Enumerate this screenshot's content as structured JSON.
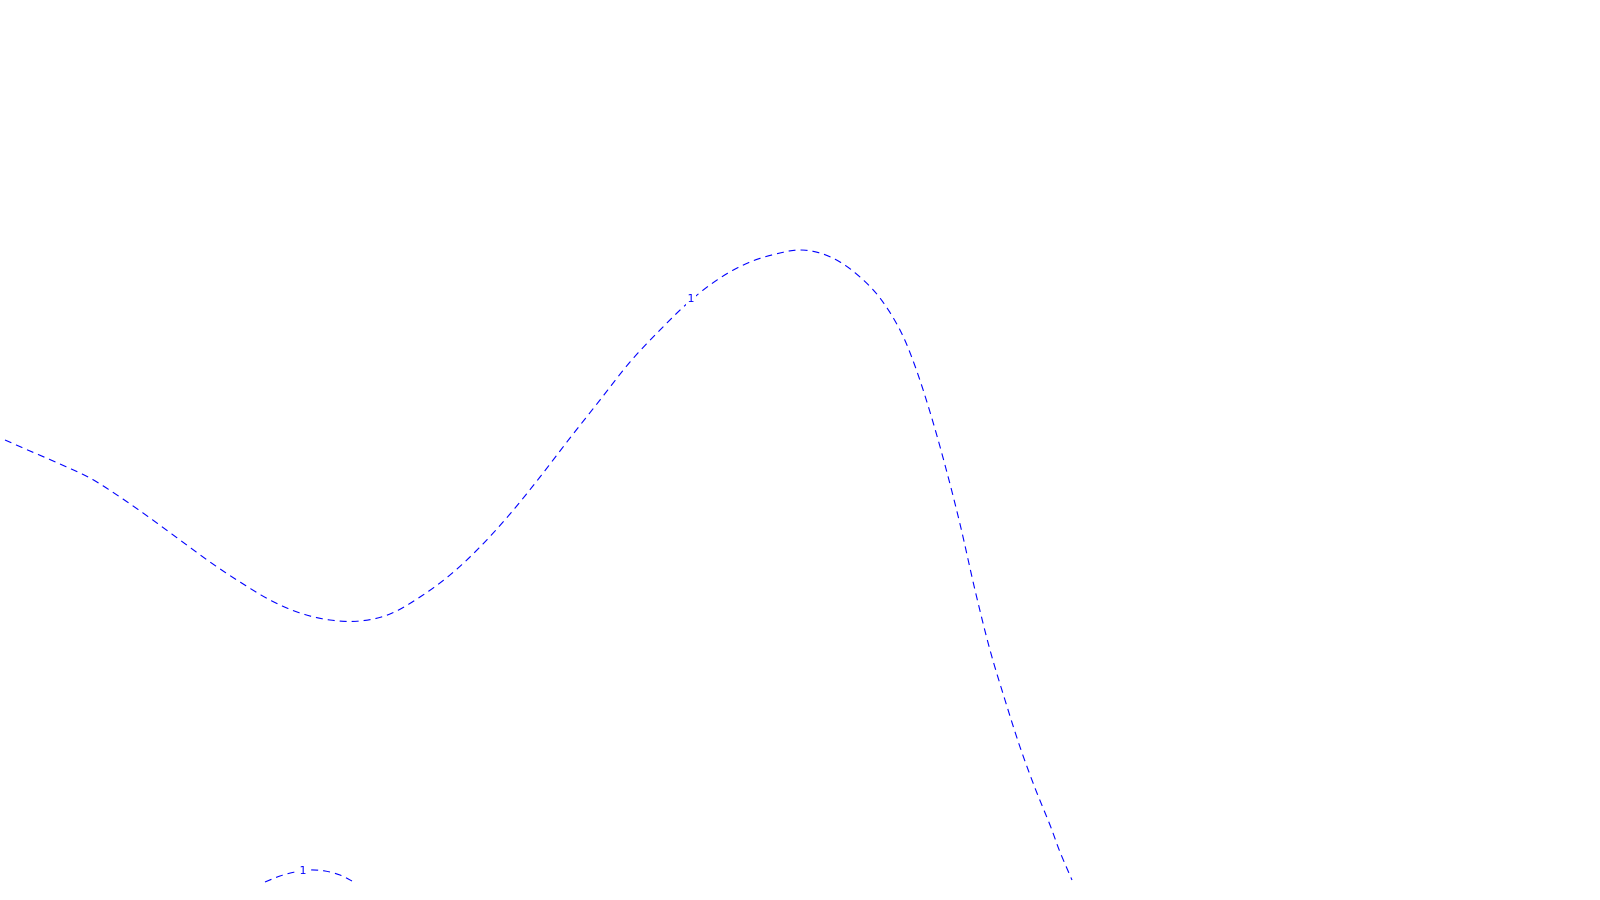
{
  "chart_data": {
    "type": "line",
    "style": "contour-plot",
    "line_style": "dashed",
    "color": "#0000ff",
    "title": "",
    "xlabel": "",
    "ylabel": "",
    "axes_visible": false,
    "grid": false,
    "series": [
      {
        "level_label": "1",
        "x": [
          5,
          30,
          60,
          90,
          120,
          150,
          180,
          210,
          240,
          270,
          300,
          330,
          360,
          390,
          420,
          450,
          480,
          510,
          540,
          570,
          600,
          630,
          660,
          690,
          720,
          750,
          780,
          800,
          820,
          840,
          860,
          880,
          900,
          915,
          930,
          945,
          960,
          975,
          990,
          1005,
          1020,
          1035,
          1050,
          1060,
          1072
        ],
        "y": [
          440,
          451,
          464,
          478,
          497,
          518,
          540,
          562,
          582,
          600,
          613,
          620,
          621,
          614,
          597,
          575,
          547,
          514,
          477,
          438,
          400,
          362,
          330,
          301,
          278,
          262,
          253,
          250,
          253,
          262,
          277,
          298,
          330,
          366,
          412,
          465,
          524,
          590,
          650,
          700,
          747,
          788,
          825,
          852,
          880
        ]
      },
      {
        "level_label": "1",
        "x": [
          265,
          280,
          295,
          310,
          325,
          340,
          352
        ],
        "y": [
          882,
          876,
          872,
          870,
          871,
          875,
          881
        ]
      }
    ],
    "labels": [
      {
        "text": "1",
        "x": 691,
        "y": 299
      },
      {
        "text": "1",
        "x": 303,
        "y": 871
      }
    ]
  }
}
